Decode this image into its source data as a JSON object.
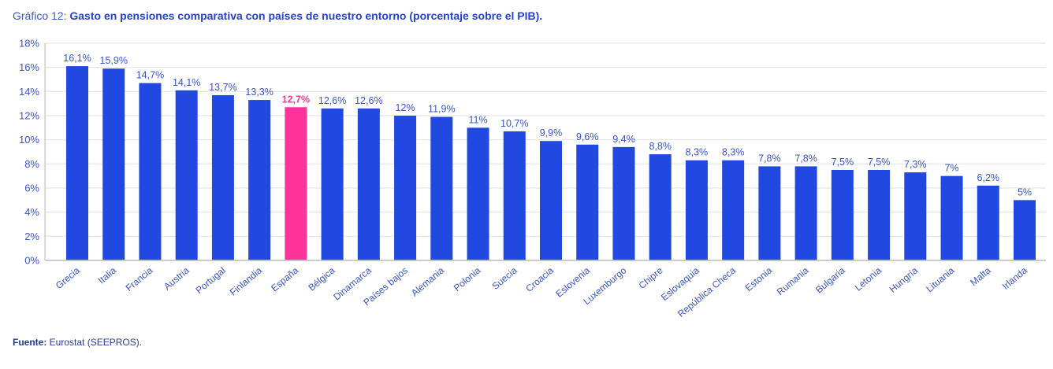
{
  "title": {
    "prefix": "Gráfico 12: ",
    "main": "Gasto en pensiones comparativa con países de nuestro entorno (porcentaje sobre el PIB)."
  },
  "source": {
    "label": "Fuente:",
    "text": " Eurostat (SEEPROS)."
  },
  "colors": {
    "bar": "#2148e0",
    "highlight": "#ff3399",
    "label": "#3a55c8",
    "grid": "#e4e4e4",
    "axis": "#c4c4c4"
  },
  "chart_data": {
    "type": "bar",
    "title": "Gasto en pensiones comparativa con países de nuestro entorno (porcentaje sobre el PIB).",
    "xlabel": "",
    "ylabel": "",
    "ylim": [
      0,
      18
    ],
    "yticks": [
      0,
      2,
      4,
      6,
      8,
      10,
      12,
      14,
      16,
      18
    ],
    "ytick_labels": [
      "0%",
      "2%",
      "4%",
      "6%",
      "8%",
      "10%",
      "12%",
      "14%",
      "16%",
      "18%"
    ],
    "grid": true,
    "highlight_category": "España",
    "categories": [
      "Grecia",
      "Italia",
      "Francia",
      "Austria",
      "Portugal",
      "Finlandia",
      "España",
      "Bélgica",
      "Dinamarca",
      "Países bajos",
      "Alemania",
      "Polonia",
      "Suecia",
      "Croacia",
      "Eslovenia",
      "Luxemburgo",
      "Chipre",
      "Eslovaquia",
      "República Checa",
      "Estonia",
      "Rumania",
      "Bulgaria",
      "Letonia",
      "Hungría",
      "Lituania",
      "Malta",
      "Irlanda"
    ],
    "values": [
      16.1,
      15.9,
      14.7,
      14.1,
      13.7,
      13.3,
      12.7,
      12.6,
      12.6,
      12,
      11.9,
      11,
      10.7,
      9.9,
      9.6,
      9.4,
      8.8,
      8.3,
      8.3,
      7.8,
      7.8,
      7.5,
      7.5,
      7.3,
      7,
      6.2,
      5
    ],
    "data_labels": [
      "16,1%",
      "15,9%",
      "14,7%",
      "14,1%",
      "13,7%",
      "13,3%",
      "12,7%",
      "12,6%",
      "12,6%",
      "12%",
      "11,9%",
      "11%",
      "10,7%",
      "9,9%",
      "9,6%",
      "9,4%",
      "8,8%",
      "8,3%",
      "8,3%",
      "7,8%",
      "7,8%",
      "7,5%",
      "7,5%",
      "7,3%",
      "7%",
      "6,2%",
      "5%"
    ]
  }
}
